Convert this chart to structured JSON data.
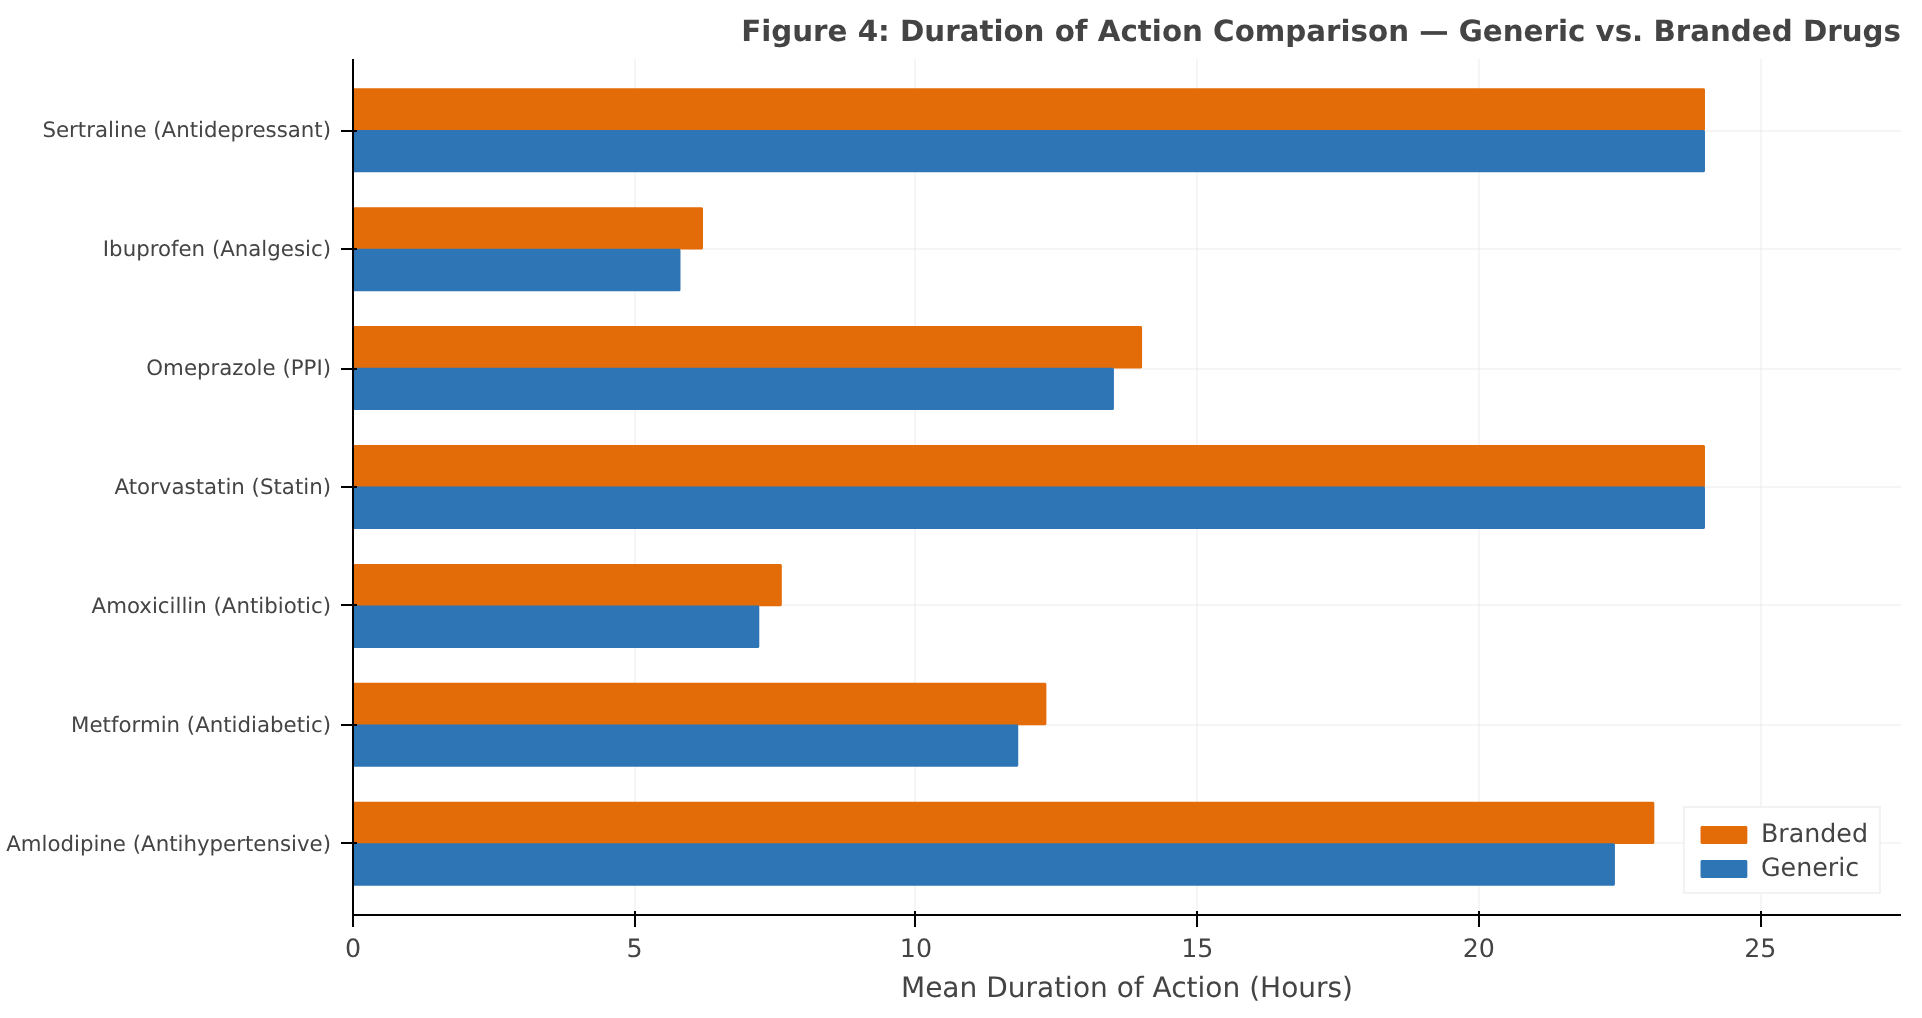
{
  "chart_data": {
    "type": "bar",
    "orientation": "horizontal",
    "title": "Figure 4: Duration of Action Comparison — Generic vs. Branded Drugs",
    "xlabel": "Mean Duration of Action (Hours)",
    "categories": [
      "Sertraline (Antidepressant)",
      "Ibuprofen (Analgesic)",
      "Omeprazole (PPI)",
      "Atorvastatin (Statin)",
      "Amoxicillin (Antibiotic)",
      "Metformin (Antidiabetic)",
      "Amlodipine (Antihypertensive)"
    ],
    "series": [
      {
        "name": "Branded",
        "color": "#e36c09",
        "values": [
          24,
          6.2,
          14,
          24,
          7.6,
          12.3,
          23.1
        ]
      },
      {
        "name": "Generic",
        "color": "#2e75b6",
        "values": [
          24,
          5.8,
          13.5,
          24,
          7.2,
          11.8,
          22.4
        ]
      }
    ],
    "xlim": [
      0,
      27.5
    ],
    "xticks": [
      0,
      5,
      10,
      15,
      20,
      25
    ],
    "grid": true,
    "legend": "bottom right"
  }
}
